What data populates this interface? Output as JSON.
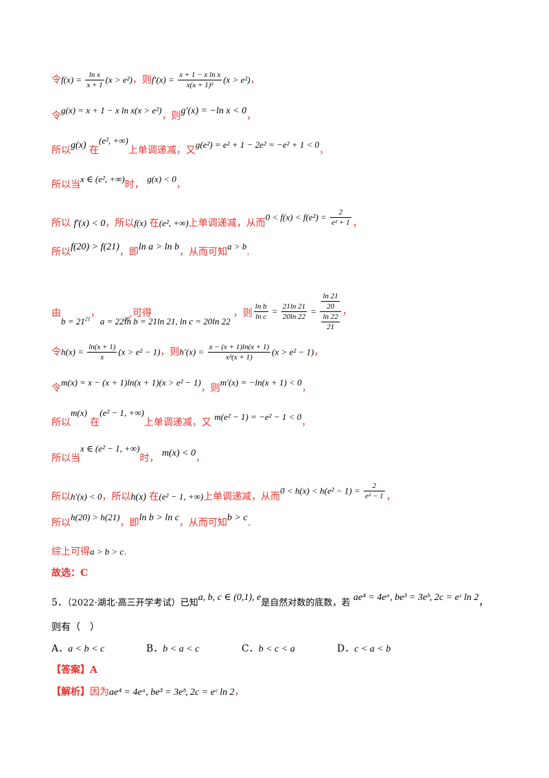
{
  "lines": {
    "l1": {
      "a": "令",
      "f1": "f(x) = ",
      "f1num": "ln x",
      "f1den": "x + 1",
      "f1c": "(x > e²)",
      "b": "，则",
      "f2": "f′(x) = ",
      "f2num": "x + 1 − x ln x",
      "f2den": "x(x + 1)²",
      "f2c": "(x > e²)",
      "c": "，"
    },
    "l2": {
      "a": "令",
      "m1": "g(x) = x + 1 − x ln x(x > e²)",
      "b": "，则",
      "m2": "g′(x) = −ln x < 0",
      "c": "，"
    },
    "l3": {
      "a": "所以",
      "m1": "g(x)",
      "b": "在",
      "m2": "(e², +∞)",
      "c": "上单调递减，又",
      "m3": "g(e²) = e² + 1 − 2e² = −e² + 1 < 0",
      "d": "，"
    },
    "l4": {
      "a": "所以当",
      "m1": "x ∈ (e², +∞)",
      "b": "时，",
      "m2": "g(x) < 0",
      "c": "，"
    },
    "l5": {
      "a": "所以",
      "m1": "f′(x) < 0",
      "b": "，所以",
      "m2": "f(x)",
      "c": "在",
      "m3": "(e², +∞)",
      "d": "上单调递减，从而",
      "m4": "0 < f(x) < f(e²) = ",
      "fnum": "2",
      "fden": "e² + 1",
      "e": "，"
    },
    "l6": {
      "a": "所以",
      "m1": "f(20) > f(21)",
      "b": "，即",
      "m2": "ln a > ln b",
      "c": "，从而可知",
      "m3": "a > b",
      "d": "."
    },
    "l7": {
      "a": "由",
      "m1": "b = 21",
      "m1sup": "21",
      "b": "，",
      "m2": "a = 22",
      "m2sup": "20",
      "c": ",可得",
      "m3": "ln b = 21ln 21, ln c = 20ln 22",
      "d": "，则",
      "f1num": "ln b",
      "f1den": "ln c",
      "eq1": " = ",
      "f2num": "21ln 21",
      "f2den": "20ln 22",
      "eq2": " = ",
      "n1": "ln 21",
      "n2": "20",
      "n3": "ln 22",
      "n4": "21",
      "e": "，"
    },
    "l8": {
      "a": "令",
      "m1": "h(x) = ",
      "f1num": "ln(x + 1)",
      "f1den": "x",
      "f1c": "(x > e² − 1)",
      "b": "，则",
      "m2": "h′(x) = ",
      "f2num": "x − (x + 1)ln(x + 1)",
      "f2den": "x²(x + 1)",
      "f2c": "(x > e² − 1)",
      "c": "，"
    },
    "l9": {
      "a": "令",
      "m1": "m(x) = x − (x + 1)ln(x + 1)(x > e² − 1)",
      "b": "，则",
      "m2": "m′(x) = −ln(x + 1) < 0",
      "c": "，"
    },
    "l10": {
      "a": "所以",
      "m1": "m(x)",
      "b": "在",
      "m2": "(e² − 1, +∞)",
      "c": "上单调递减，又",
      "m3": "m(e² − 1) = −e² − 1 < 0",
      "d": "，"
    },
    "l11": {
      "a": "所以当",
      "m1": "x ∈ (e² − 1, +∞)",
      "b": "时，",
      "m2": "m(x) < 0",
      "c": "，"
    },
    "l12": {
      "a": "所以",
      "m1": "h′(x) < 0",
      "b": "，所以",
      "m2": "h(x)",
      "c": "在",
      "m3": "(e² − 1, +∞)",
      "d": "上单调递减，从而",
      "m4": "0 < h(x) < h(e² − 1) = ",
      "fnum": "2",
      "fden": "e² − 1",
      "e": "，"
    },
    "l13": {
      "a": "所以",
      "m1": "h(20) > h(21)",
      "b": "，即",
      "m2": "ln b > ln c",
      "c": "，从而可知",
      "m3": "b > c",
      "d": "."
    },
    "l14": {
      "a": "综上可得",
      "m1": "a > b > c",
      "b": "."
    },
    "l15": {
      "a": "故选：C"
    },
    "l16": {
      "num": "5．",
      "src": "（2022·湖北·高三开学考试）已知",
      "m1": "a, b, c ∈ (0,1), e",
      "b": "是自然对数的底数，若",
      "m2": "ae⁴ = 4eᵃ, be³ = 3eᵇ, 2c = eᶜ ln 2",
      "c": "，"
    },
    "l17": {
      "a": "则有（　）"
    },
    "options": [
      {
        "label": "A．",
        "text": "a < b < c"
      },
      {
        "label": "B．",
        "text": "b < a < c"
      },
      {
        "label": "C．",
        "text": "b < c < a"
      },
      {
        "label": "D．",
        "text": "c < a < b"
      }
    ],
    "answer": {
      "tag": "【答案】",
      "val": "A"
    },
    "analysis": {
      "tag": "【解析】",
      "a": "因为",
      "m1": "ae⁴ = 4eᵃ, be³ = 3eᵇ, 2c = eᶜ ln 2",
      "b": "，"
    }
  }
}
